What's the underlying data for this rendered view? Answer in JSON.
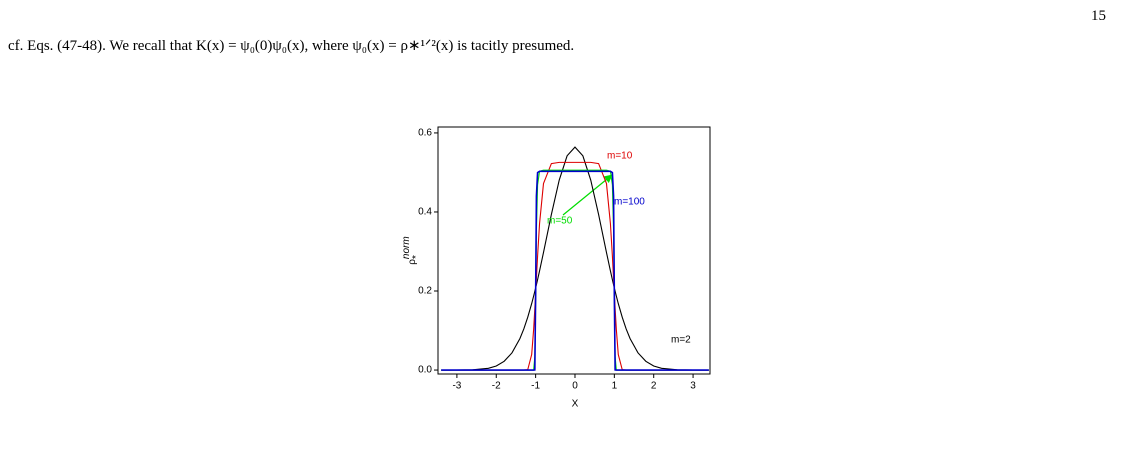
{
  "page_number": "15",
  "body_text": "cf. Eqs. (47-48). We recall that K(x) = ψ₀(0)ψ₀(x), where ψ₀(x) = ρ∗¹ᐟ²(x) is tacitly presumed.",
  "chart_data": {
    "type": "line",
    "xlabel": "X",
    "ylabel": {
      "base": "ρ",
      "sub": "*",
      "sup": "norm"
    },
    "x": [
      -3.4,
      -3,
      -2.6,
      -2.2,
      -2,
      -1.8,
      -1.6,
      -1.4,
      -1.3,
      -1.2,
      -1.1,
      -1.05,
      -1.02,
      -1,
      -0.98,
      -0.95,
      -0.9,
      -0.8,
      -0.6,
      -0.4,
      -0.2,
      0,
      0.2,
      0.4,
      0.6,
      0.8,
      0.9,
      0.95,
      0.98,
      1,
      1.02,
      1.05,
      1.1,
      1.2,
      1.3,
      1.4,
      1.6,
      1.8,
      2,
      2.2,
      2.6,
      3,
      3.4
    ],
    "series": [
      {
        "name": "m=2",
        "color": "#000000",
        "values": [
          0,
          0.0001,
          0.0007,
          0.0045,
          0.0103,
          0.0221,
          0.0436,
          0.0795,
          0.1041,
          0.1337,
          0.1682,
          0.1873,
          0.1993,
          0.2076,
          0.2159,
          0.2288,
          0.251,
          0.2975,
          0.3936,
          0.4808,
          0.5421,
          0.5642,
          0.5421,
          0.4808,
          0.3936,
          0.2975,
          0.251,
          0.2288,
          0.2159,
          0.2076,
          0.1993,
          0.1873,
          0.1682,
          0.1337,
          0.1041,
          0.0795,
          0.0436,
          0.0221,
          0.0103,
          0.0045,
          0.0007,
          0.0001,
          0
        ]
      },
      {
        "name": "m=10",
        "color": "#dd0000",
        "values": [
          0,
          0,
          0,
          0,
          0,
          0,
          0,
          0,
          0,
          0.0011,
          0.0393,
          0.1031,
          0.1553,
          0.1933,
          0.2321,
          0.2888,
          0.3708,
          0.472,
          0.5224,
          0.5255,
          0.5255,
          0.5255,
          0.5255,
          0.5255,
          0.5224,
          0.472,
          0.3708,
          0.2888,
          0.2321,
          0.1933,
          0.1553,
          0.1031,
          0.0393,
          0.0011,
          0,
          0,
          0,
          0,
          0,
          0,
          0,
          0,
          0
        ]
      },
      {
        "name": "m=50",
        "color": "#00dd00",
        "values": [
          0,
          0,
          0,
          0,
          0,
          0,
          0,
          0,
          0,
          0,
          0,
          0,
          0.0342,
          0.186,
          0.3514,
          0.4683,
          0.5031,
          0.5057,
          0.5057,
          0.5057,
          0.5057,
          0.5057,
          0.5057,
          0.5057,
          0.5057,
          0.5057,
          0.5031,
          0.4683,
          0.3514,
          0.186,
          0.0342,
          0,
          0,
          0,
          0,
          0,
          0,
          0,
          0,
          0,
          0,
          0,
          0
        ]
      },
      {
        "name": "m=100",
        "color": "#0000cc",
        "values": [
          0,
          0,
          0,
          0,
          0,
          0,
          0,
          0,
          0,
          0,
          0,
          0,
          0.0004,
          0.185,
          0.4403,
          0.4998,
          0.5028,
          0.5028,
          0.5028,
          0.5028,
          0.5028,
          0.5028,
          0.5028,
          0.5028,
          0.5028,
          0.5028,
          0.5028,
          0.4998,
          0.4403,
          0.185,
          0.0004,
          0,
          0,
          0,
          0,
          0,
          0,
          0,
          0,
          0,
          0,
          0,
          0
        ]
      }
    ],
    "xlim": [
      -3.48,
      3.43
    ],
    "ylim": [
      -0.01,
      0.615
    ],
    "xticks": [
      -3,
      -2,
      -1,
      0,
      1,
      2,
      3
    ],
    "yticks": [
      {
        "value": 0,
        "label": "0.0"
      },
      {
        "value": 0.2,
        "label": "0.2"
      },
      {
        "value": 0.4,
        "label": "0.4"
      },
      {
        "value": 0.6,
        "label": "0.6"
      }
    ]
  }
}
